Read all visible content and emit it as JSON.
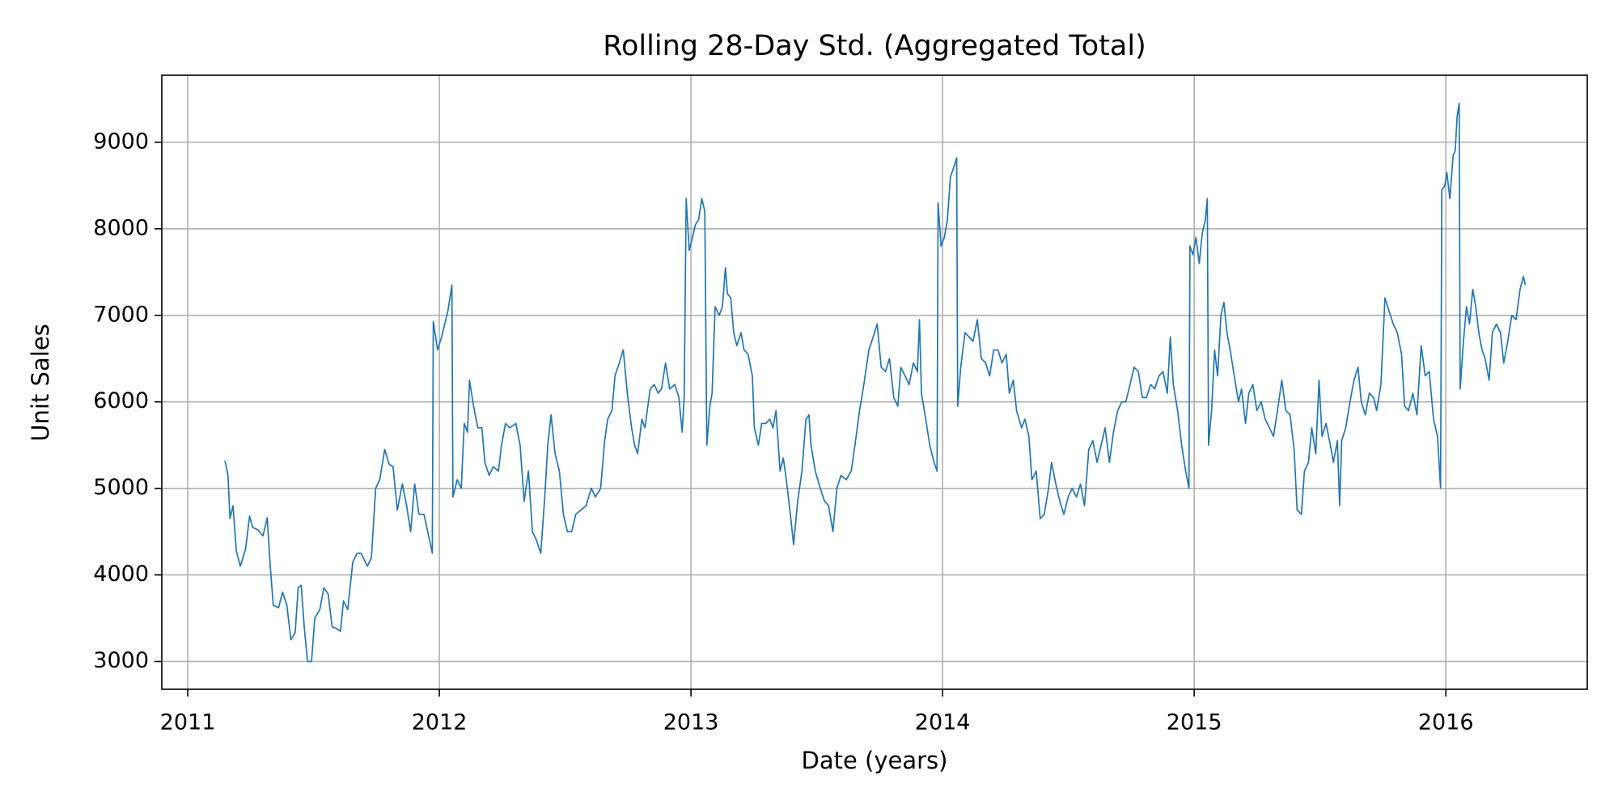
{
  "chart_data": {
    "type": "line",
    "title": "Rolling 28-Day Std. (Aggregated Total)",
    "xlabel": "Date (years)",
    "ylabel": "Unit Sales",
    "color": "#1f77b4",
    "grid": true,
    "xlim": [
      2010.897,
      2016.562
    ],
    "xticks": [
      2011,
      2012,
      2013,
      2014,
      2015,
      2016
    ],
    "ylim": [
      2678,
      9775
    ],
    "yticks": [
      3000,
      4000,
      5000,
      6000,
      7000,
      8000,
      9000
    ],
    "x": [
      2011.148,
      2011.16,
      2011.168,
      2011.18,
      2011.193,
      2011.209,
      2011.23,
      2011.246,
      2011.258,
      2011.279,
      2011.299,
      2011.316,
      2011.328,
      2011.34,
      2011.361,
      2011.377,
      2011.394,
      2011.41,
      2011.427,
      2011.439,
      2011.451,
      2011.463,
      2011.476,
      2011.492,
      2011.505,
      2011.525,
      2011.541,
      2011.558,
      2011.574,
      2011.591,
      2011.607,
      2011.619,
      2011.636,
      2011.656,
      2011.673,
      2011.689,
      2011.714,
      2011.73,
      2011.747,
      2011.763,
      2011.783,
      2011.8,
      2011.816,
      2011.833,
      2011.853,
      2011.87,
      2011.886,
      2011.902,
      2011.919,
      2011.939,
      2011.972,
      2011.976,
      2011.993,
      2012.009,
      2012.034,
      2012.05,
      2012.054,
      2012.071,
      2012.087,
      2012.099,
      2012.112,
      2012.12,
      2012.136,
      2012.153,
      2012.169,
      2012.181,
      2012.198,
      2012.214,
      2012.235,
      2012.247,
      2012.263,
      2012.28,
      2012.304,
      2012.321,
      2012.337,
      2012.354,
      2012.37,
      2012.386,
      2012.403,
      2012.419,
      2012.431,
      2012.444,
      2012.46,
      2012.477,
      2012.493,
      2012.509,
      2012.526,
      2012.542,
      2012.563,
      2012.583,
      2012.604,
      2012.62,
      2012.641,
      2012.657,
      2012.669,
      2012.686,
      2012.698,
      2012.715,
      2012.731,
      2012.747,
      2012.764,
      2012.776,
      2012.788,
      2012.805,
      2012.817,
      2012.838,
      2012.854,
      2012.87,
      2012.883,
      2012.899,
      2012.915,
      2012.936,
      2012.952,
      2012.965,
      2012.973,
      2012.981,
      2012.993,
      2013.006,
      2013.018,
      2013.03,
      2013.043,
      2013.055,
      2013.063,
      2013.075,
      2013.084,
      2013.096,
      2013.112,
      2013.125,
      2013.137,
      2013.145,
      2013.158,
      2013.17,
      2013.182,
      2013.199,
      2013.211,
      2013.227,
      2013.244,
      2013.252,
      2013.268,
      2013.281,
      2013.297,
      2013.313,
      2013.326,
      2013.338,
      2013.354,
      2013.367,
      2013.379,
      2013.395,
      2013.408,
      2013.424,
      2013.441,
      2013.457,
      2013.469,
      2013.477,
      2013.494,
      2013.514,
      2013.531,
      2013.547,
      2013.564,
      2013.58,
      2013.596,
      2013.617,
      2013.637,
      2013.654,
      2013.67,
      2013.687,
      2013.707,
      2013.724,
      2013.74,
      2013.756,
      2013.773,
      2013.789,
      2013.806,
      2013.822,
      2013.834,
      2013.851,
      2013.867,
      2013.884,
      2013.9,
      2013.908,
      2013.916,
      2013.933,
      2013.949,
      2013.966,
      2013.978,
      2013.982,
      2013.994,
      2014.007,
      2014.019,
      2014.031,
      2014.043,
      2014.056,
      2014.06,
      2014.072,
      2014.089,
      2014.105,
      2014.121,
      2014.138,
      2014.154,
      2014.171,
      2014.187,
      2014.203,
      2014.22,
      2014.236,
      2014.253,
      2014.265,
      2014.281,
      2014.294,
      2014.314,
      2014.327,
      2014.343,
      2014.355,
      2014.372,
      2014.388,
      2014.404,
      2014.421,
      2014.433,
      2014.45,
      2014.466,
      2014.482,
      2014.499,
      2014.515,
      2014.532,
      2014.548,
      2014.564,
      2014.581,
      2014.597,
      2014.614,
      2014.63,
      2014.646,
      2014.663,
      2014.679,
      2014.696,
      2014.712,
      2014.728,
      2014.745,
      2014.761,
      2014.778,
      2014.794,
      2014.81,
      2014.827,
      2014.843,
      2014.86,
      2014.876,
      2014.893,
      2014.905,
      2014.917,
      2014.934,
      2014.95,
      2014.966,
      2014.979,
      2014.983,
      2014.995,
      2015.007,
      2015.02,
      2015.032,
      2015.044,
      2015.052,
      2015.057,
      2015.069,
      2015.081,
      2015.093,
      2015.106,
      2015.118,
      2015.13,
      2015.143,
      2015.159,
      2015.176,
      2015.188,
      2015.204,
      2015.217,
      2015.233,
      2015.249,
      2015.266,
      2015.282,
      2015.299,
      2015.315,
      2015.331,
      2015.348,
      2015.364,
      2015.381,
      2015.397,
      2015.409,
      2015.426,
      2015.438,
      2015.454,
      2015.467,
      2015.483,
      2015.496,
      2015.508,
      2015.524,
      2015.541,
      2015.553,
      2015.569,
      2015.578,
      2015.586,
      2015.602,
      2015.619,
      2015.635,
      2015.651,
      2015.664,
      2015.68,
      2015.696,
      2015.713,
      2015.725,
      2015.742,
      2015.758,
      2015.774,
      2015.791,
      2015.807,
      2015.824,
      2015.836,
      2015.852,
      2015.869,
      2015.885,
      2015.902,
      2015.918,
      2015.934,
      2015.951,
      2015.967,
      2015.979,
      2015.984,
      2015.996,
      2016.004,
      2016.016,
      2016.029,
      2016.037,
      2016.045,
      2016.053,
      2016.057,
      2016.07,
      2016.082,
      2016.094,
      2016.107,
      2016.119,
      2016.131,
      2016.144,
      2016.156,
      2016.172,
      2016.185,
      2016.201,
      2016.217,
      2016.23,
      2016.246,
      2016.262,
      2016.279,
      2016.295,
      2016.308,
      2016.316
    ],
    "values": [
      5320,
      5150,
      4650,
      4800,
      4280,
      4100,
      4300,
      4680,
      4550,
      4520,
      4450,
      4660,
      4100,
      3650,
      3620,
      3800,
      3650,
      3250,
      3330,
      3850,
      3880,
      3400,
      3000,
      3000,
      3500,
      3600,
      3850,
      3780,
      3400,
      3380,
      3350,
      3700,
      3600,
      4150,
      4250,
      4250,
      4100,
      4200,
      5000,
      5100,
      5450,
      5280,
      5250,
      4750,
      5050,
      4800,
      4500,
      5050,
      4700,
      4700,
      4250,
      6930,
      6600,
      6750,
      7050,
      7350,
      4900,
      5100,
      5000,
      5750,
      5650,
      6250,
      5950,
      5700,
      5700,
      5300,
      5150,
      5250,
      5200,
      5500,
      5750,
      5700,
      5750,
      5500,
      4850,
      5200,
      4500,
      4400,
      4250,
      4900,
      5500,
      5850,
      5400,
      5200,
      4700,
      4500,
      4500,
      4700,
      4750,
      4800,
      5000,
      4900,
      5000,
      5550,
      5800,
      5900,
      6300,
      6450,
      6600,
      6100,
      5700,
      5500,
      5400,
      5800,
      5700,
      6150,
      6200,
      6100,
      6150,
      6450,
      6150,
      6200,
      6050,
      5650,
      6050,
      8350,
      7750,
      7900,
      8050,
      8100,
      8350,
      8200,
      5500,
      5950,
      6100,
      7100,
      7000,
      7100,
      7550,
      7250,
      7200,
      6800,
      6650,
      6800,
      6600,
      6550,
      6300,
      5700,
      5500,
      5750,
      5750,
      5800,
      5700,
      5900,
      5200,
      5350,
      5100,
      4700,
      4350,
      4850,
      5200,
      5800,
      5850,
      5500,
      5200,
      5000,
      4850,
      4800,
      4500,
      5000,
      5150,
      5100,
      5200,
      5550,
      5900,
      6200,
      6600,
      6750,
      6900,
      6400,
      6350,
      6500,
      6050,
      5950,
      6400,
      6300,
      6200,
      6450,
      6350,
      6950,
      6100,
      5800,
      5500,
      5300,
      5200,
      8300,
      7800,
      7900,
      8100,
      8600,
      8700,
      8820,
      5950,
      6400,
      6800,
      6750,
      6700,
      6950,
      6500,
      6450,
      6300,
      6600,
      6600,
      6450,
      6550,
      6100,
      6250,
      5900,
      5700,
      5800,
      5600,
      5100,
      5200,
      4650,
      4700,
      5000,
      5300,
      5050,
      4850,
      4700,
      4900,
      5000,
      4900,
      5050,
      4800,
      5450,
      5550,
      5300,
      5500,
      5700,
      5300,
      5650,
      5900,
      6000,
      6000,
      6200,
      6400,
      6350,
      6050,
      6050,
      6200,
      6150,
      6300,
      6350,
      6100,
      6750,
      6200,
      5900,
      5500,
      5200,
      5000,
      7800,
      7700,
      7900,
      7600,
      7950,
      8100,
      8350,
      5500,
      5900,
      6600,
      6300,
      7000,
      7150,
      6800,
      6600,
      6300,
      6000,
      6150,
      5750,
      6100,
      6200,
      5900,
      6000,
      5800,
      5700,
      5600,
      5900,
      6250,
      5900,
      5850,
      5450,
      4750,
      4700,
      5200,
      5300,
      5700,
      5400,
      6250,
      5600,
      5750,
      5500,
      5300,
      5550,
      4800,
      5550,
      5700,
      6000,
      6250,
      6400,
      6000,
      5850,
      6100,
      6050,
      5900,
      6200,
      7200,
      7050,
      6900,
      6800,
      6550,
      5950,
      5900,
      6100,
      5850,
      6650,
      6300,
      6350,
      5800,
      5600,
      5000,
      8450,
      8500,
      8650,
      8350,
      8850,
      8900,
      9300,
      9450,
      6150,
      6700,
      7100,
      6900,
      7300,
      7100,
      6800,
      6600,
      6500,
      6250,
      6800,
      6900,
      6800,
      6450,
      6700,
      7000,
      6950,
      7300,
      7450,
      7350
    ]
  }
}
